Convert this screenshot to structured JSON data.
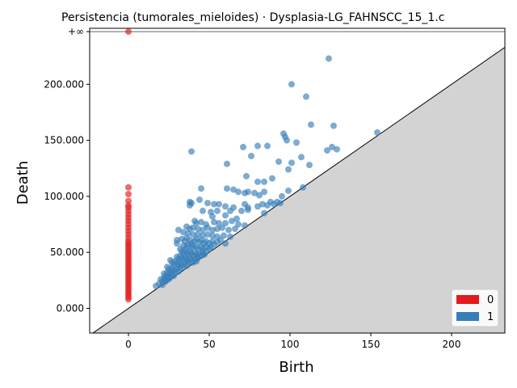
{
  "chart_data": {
    "type": "scatter",
    "title": "Persistencia (tumorales_mieloides) · Dysplasia-LG_FAHNSCC_15_1.c",
    "xlabel": "Birth",
    "ylabel": "Death",
    "xlim": [
      -24,
      233
    ],
    "ylim": [
      -22,
      250
    ],
    "inf_value": 247,
    "inf_label": "+∞",
    "x_ticks": [
      {
        "value": 0,
        "label": "0"
      },
      {
        "value": 50,
        "label": "50"
      },
      {
        "value": 100,
        "label": "100"
      },
      {
        "value": 150,
        "label": "150"
      },
      {
        "value": 200,
        "label": "200"
      }
    ],
    "y_ticks": [
      {
        "value": 0,
        "label": "0.000"
      },
      {
        "value": 50,
        "label": "50.000"
      },
      {
        "value": 100,
        "label": "100.000"
      },
      {
        "value": 150,
        "label": "150.000"
      },
      {
        "value": 200,
        "label": "200.000"
      }
    ],
    "grid": false,
    "legend_position": "bottom-right",
    "diagonal": true,
    "series": [
      {
        "name": "0",
        "color": "#e41a1c",
        "infinite_points": [
          {
            "x": 0
          }
        ],
        "points": [
          {
            "x": 0,
            "y": 108
          },
          {
            "x": 0,
            "y": 102
          },
          {
            "x": 0,
            "y": 96
          },
          {
            "x": 0,
            "y": 92
          },
          {
            "x": 0,
            "y": 90
          },
          {
            "x": 0,
            "y": 87
          },
          {
            "x": 0,
            "y": 84
          },
          {
            "x": 0,
            "y": 81
          },
          {
            "x": 0,
            "y": 78
          },
          {
            "x": 0,
            "y": 75
          },
          {
            "x": 0,
            "y": 72
          },
          {
            "x": 0,
            "y": 69
          },
          {
            "x": 0,
            "y": 66
          },
          {
            "x": 0,
            "y": 63
          },
          {
            "x": 0,
            "y": 60
          },
          {
            "x": 0,
            "y": 58
          },
          {
            "x": 0,
            "y": 56
          },
          {
            "x": 0,
            "y": 54
          },
          {
            "x": 0,
            "y": 52
          },
          {
            "x": 0,
            "y": 50
          },
          {
            "x": 0,
            "y": 48
          },
          {
            "x": 0,
            "y": 46
          },
          {
            "x": 0,
            "y": 44
          },
          {
            "x": 0,
            "y": 42
          },
          {
            "x": 0,
            "y": 40
          },
          {
            "x": 0,
            "y": 38
          },
          {
            "x": 0,
            "y": 36
          },
          {
            "x": 0,
            "y": 34
          },
          {
            "x": 0,
            "y": 32
          },
          {
            "x": 0,
            "y": 30
          },
          {
            "x": 0,
            "y": 28
          },
          {
            "x": 0,
            "y": 26
          },
          {
            "x": 0,
            "y": 24
          },
          {
            "x": 0,
            "y": 22
          },
          {
            "x": 0,
            "y": 20
          },
          {
            "x": 0,
            "y": 18
          },
          {
            "x": 0,
            "y": 16
          },
          {
            "x": 0,
            "y": 14
          },
          {
            "x": 0,
            "y": 12
          },
          {
            "x": 0,
            "y": 10
          },
          {
            "x": 0,
            "y": 8
          }
        ]
      },
      {
        "name": "1",
        "color": "#377eb8",
        "infinite_points": [],
        "points": [
          {
            "x": 124,
            "y": 223
          },
          {
            "x": 101,
            "y": 200
          },
          {
            "x": 110,
            "y": 189
          },
          {
            "x": 113,
            "y": 164
          },
          {
            "x": 127,
            "y": 163
          },
          {
            "x": 96,
            "y": 156
          },
          {
            "x": 154,
            "y": 157
          },
          {
            "x": 97,
            "y": 153
          },
          {
            "x": 98,
            "y": 150
          },
          {
            "x": 104,
            "y": 148
          },
          {
            "x": 71,
            "y": 144
          },
          {
            "x": 80,
            "y": 145
          },
          {
            "x": 86,
            "y": 145
          },
          {
            "x": 126,
            "y": 144
          },
          {
            "x": 129,
            "y": 142
          },
          {
            "x": 123,
            "y": 141
          },
          {
            "x": 39,
            "y": 140
          },
          {
            "x": 76,
            "y": 136
          },
          {
            "x": 107,
            "y": 135
          },
          {
            "x": 93,
            "y": 131
          },
          {
            "x": 101,
            "y": 130
          },
          {
            "x": 112,
            "y": 128
          },
          {
            "x": 61,
            "y": 129
          },
          {
            "x": 99,
            "y": 124
          },
          {
            "x": 73,
            "y": 118
          },
          {
            "x": 89,
            "y": 116
          },
          {
            "x": 80,
            "y": 113
          },
          {
            "x": 84,
            "y": 113
          },
          {
            "x": 108,
            "y": 108
          },
          {
            "x": 45,
            "y": 107
          },
          {
            "x": 61,
            "y": 107
          },
          {
            "x": 65,
            "y": 106
          },
          {
            "x": 68,
            "y": 104
          },
          {
            "x": 72,
            "y": 103
          },
          {
            "x": 74,
            "y": 104
          },
          {
            "x": 78,
            "y": 103
          },
          {
            "x": 81,
            "y": 101
          },
          {
            "x": 84,
            "y": 104
          },
          {
            "x": 99,
            "y": 105
          },
          {
            "x": 95,
            "y": 100
          },
          {
            "x": 44,
            "y": 97
          },
          {
            "x": 38,
            "y": 95
          },
          {
            "x": 39,
            "y": 94
          },
          {
            "x": 49,
            "y": 94
          },
          {
            "x": 53,
            "y": 93
          },
          {
            "x": 56,
            "y": 93
          },
          {
            "x": 72,
            "y": 93
          },
          {
            "x": 83,
            "y": 93
          },
          {
            "x": 88,
            "y": 95
          },
          {
            "x": 92,
            "y": 95
          },
          {
            "x": 38,
            "y": 92
          },
          {
            "x": 60,
            "y": 91
          },
          {
            "x": 65,
            "y": 90
          },
          {
            "x": 74,
            "y": 90
          },
          {
            "x": 80,
            "y": 91
          },
          {
            "x": 86,
            "y": 92
          },
          {
            "x": 90,
            "y": 93
          },
          {
            "x": 94,
            "y": 94
          },
          {
            "x": 46,
            "y": 87
          },
          {
            "x": 51,
            "y": 86
          },
          {
            "x": 55,
            "y": 87
          },
          {
            "x": 63,
            "y": 87
          },
          {
            "x": 70,
            "y": 87
          },
          {
            "x": 74,
            "y": 88
          },
          {
            "x": 84,
            "y": 85
          },
          {
            "x": 60,
            "y": 83
          },
          {
            "x": 52,
            "y": 82
          },
          {
            "x": 67,
            "y": 80
          },
          {
            "x": 41,
            "y": 78
          },
          {
            "x": 42,
            "y": 76
          },
          {
            "x": 45,
            "y": 77
          },
          {
            "x": 48,
            "y": 75
          },
          {
            "x": 53,
            "y": 77
          },
          {
            "x": 56,
            "y": 76
          },
          {
            "x": 60,
            "y": 76
          },
          {
            "x": 64,
            "y": 78
          },
          {
            "x": 68,
            "y": 75
          },
          {
            "x": 72,
            "y": 74
          },
          {
            "x": 36,
            "y": 73
          },
          {
            "x": 38,
            "y": 71
          },
          {
            "x": 40,
            "y": 72
          },
          {
            "x": 43,
            "y": 71
          },
          {
            "x": 46,
            "y": 70
          },
          {
            "x": 49,
            "y": 72
          },
          {
            "x": 52,
            "y": 70
          },
          {
            "x": 55,
            "y": 71
          },
          {
            "x": 58,
            "y": 72
          },
          {
            "x": 62,
            "y": 70
          },
          {
            "x": 66,
            "y": 71
          },
          {
            "x": 31,
            "y": 70
          },
          {
            "x": 34,
            "y": 68
          },
          {
            "x": 37,
            "y": 67
          },
          {
            "x": 40,
            "y": 66
          },
          {
            "x": 43,
            "y": 66
          },
          {
            "x": 46,
            "y": 65
          },
          {
            "x": 49,
            "y": 66
          },
          {
            "x": 52,
            "y": 65
          },
          {
            "x": 55,
            "y": 64
          },
          {
            "x": 59,
            "y": 65
          },
          {
            "x": 63,
            "y": 64
          },
          {
            "x": 30,
            "y": 61
          },
          {
            "x": 30,
            "y": 58
          },
          {
            "x": 33,
            "y": 62
          },
          {
            "x": 35,
            "y": 60
          },
          {
            "x": 36,
            "y": 63
          },
          {
            "x": 38,
            "y": 61
          },
          {
            "x": 39,
            "y": 58
          },
          {
            "x": 41,
            "y": 60
          },
          {
            "x": 42,
            "y": 62
          },
          {
            "x": 44,
            "y": 59
          },
          {
            "x": 45,
            "y": 61
          },
          {
            "x": 47,
            "y": 58
          },
          {
            "x": 48,
            "y": 60
          },
          {
            "x": 50,
            "y": 58
          },
          {
            "x": 52,
            "y": 60
          },
          {
            "x": 53,
            "y": 57
          },
          {
            "x": 55,
            "y": 59
          },
          {
            "x": 57,
            "y": 61
          },
          {
            "x": 60,
            "y": 58
          },
          {
            "x": 34,
            "y": 56
          },
          {
            "x": 36,
            "y": 55
          },
          {
            "x": 37,
            "y": 57
          },
          {
            "x": 39,
            "y": 54
          },
          {
            "x": 40,
            "y": 56
          },
          {
            "x": 42,
            "y": 55
          },
          {
            "x": 43,
            "y": 53
          },
          {
            "x": 45,
            "y": 55
          },
          {
            "x": 46,
            "y": 53
          },
          {
            "x": 48,
            "y": 55
          },
          {
            "x": 50,
            "y": 53
          },
          {
            "x": 51,
            "y": 55
          },
          {
            "x": 32,
            "y": 53
          },
          {
            "x": 33,
            "y": 51
          },
          {
            "x": 34,
            "y": 49
          },
          {
            "x": 35,
            "y": 52
          },
          {
            "x": 36,
            "y": 50
          },
          {
            "x": 37,
            "y": 48
          },
          {
            "x": 38,
            "y": 51
          },
          {
            "x": 39,
            "y": 49
          },
          {
            "x": 40,
            "y": 47
          },
          {
            "x": 41,
            "y": 50
          },
          {
            "x": 42,
            "y": 48
          },
          {
            "x": 43,
            "y": 46
          },
          {
            "x": 44,
            "y": 49
          },
          {
            "x": 45,
            "y": 47
          },
          {
            "x": 46,
            "y": 50
          },
          {
            "x": 47,
            "y": 48
          },
          {
            "x": 48,
            "y": 51
          },
          {
            "x": 30,
            "y": 46
          },
          {
            "x": 31,
            "y": 44
          },
          {
            "x": 32,
            "y": 47
          },
          {
            "x": 33,
            "y": 45
          },
          {
            "x": 34,
            "y": 43
          },
          {
            "x": 35,
            "y": 46
          },
          {
            "x": 36,
            "y": 44
          },
          {
            "x": 37,
            "y": 42
          },
          {
            "x": 38,
            "y": 45
          },
          {
            "x": 39,
            "y": 43
          },
          {
            "x": 40,
            "y": 41
          },
          {
            "x": 41,
            "y": 44
          },
          {
            "x": 42,
            "y": 42
          },
          {
            "x": 43,
            "y": 45
          },
          {
            "x": 26,
            "y": 43
          },
          {
            "x": 27,
            "y": 41
          },
          {
            "x": 28,
            "y": 39
          },
          {
            "x": 29,
            "y": 42
          },
          {
            "x": 30,
            "y": 40
          },
          {
            "x": 31,
            "y": 38
          },
          {
            "x": 32,
            "y": 41
          },
          {
            "x": 33,
            "y": 39
          },
          {
            "x": 34,
            "y": 37
          },
          {
            "x": 35,
            "y": 40
          },
          {
            "x": 36,
            "y": 38
          },
          {
            "x": 37,
            "y": 41
          },
          {
            "x": 24,
            "y": 37
          },
          {
            "x": 25,
            "y": 35
          },
          {
            "x": 26,
            "y": 33
          },
          {
            "x": 27,
            "y": 36
          },
          {
            "x": 28,
            "y": 34
          },
          {
            "x": 29,
            "y": 32
          },
          {
            "x": 30,
            "y": 35
          },
          {
            "x": 31,
            "y": 33
          },
          {
            "x": 32,
            "y": 36
          },
          {
            "x": 22,
            "y": 31
          },
          {
            "x": 23,
            "y": 29
          },
          {
            "x": 24,
            "y": 32
          },
          {
            "x": 25,
            "y": 30
          },
          {
            "x": 26,
            "y": 28
          },
          {
            "x": 27,
            "y": 31
          },
          {
            "x": 28,
            "y": 29
          },
          {
            "x": 20,
            "y": 26
          },
          {
            "x": 21,
            "y": 24
          },
          {
            "x": 22,
            "y": 27
          },
          {
            "x": 23,
            "y": 25
          },
          {
            "x": 24,
            "y": 28
          },
          {
            "x": 25,
            "y": 26
          },
          {
            "x": 17,
            "y": 20
          },
          {
            "x": 19,
            "y": 22
          },
          {
            "x": 21,
            "y": 21
          },
          {
            "x": 23,
            "y": 24
          }
        ]
      }
    ]
  }
}
